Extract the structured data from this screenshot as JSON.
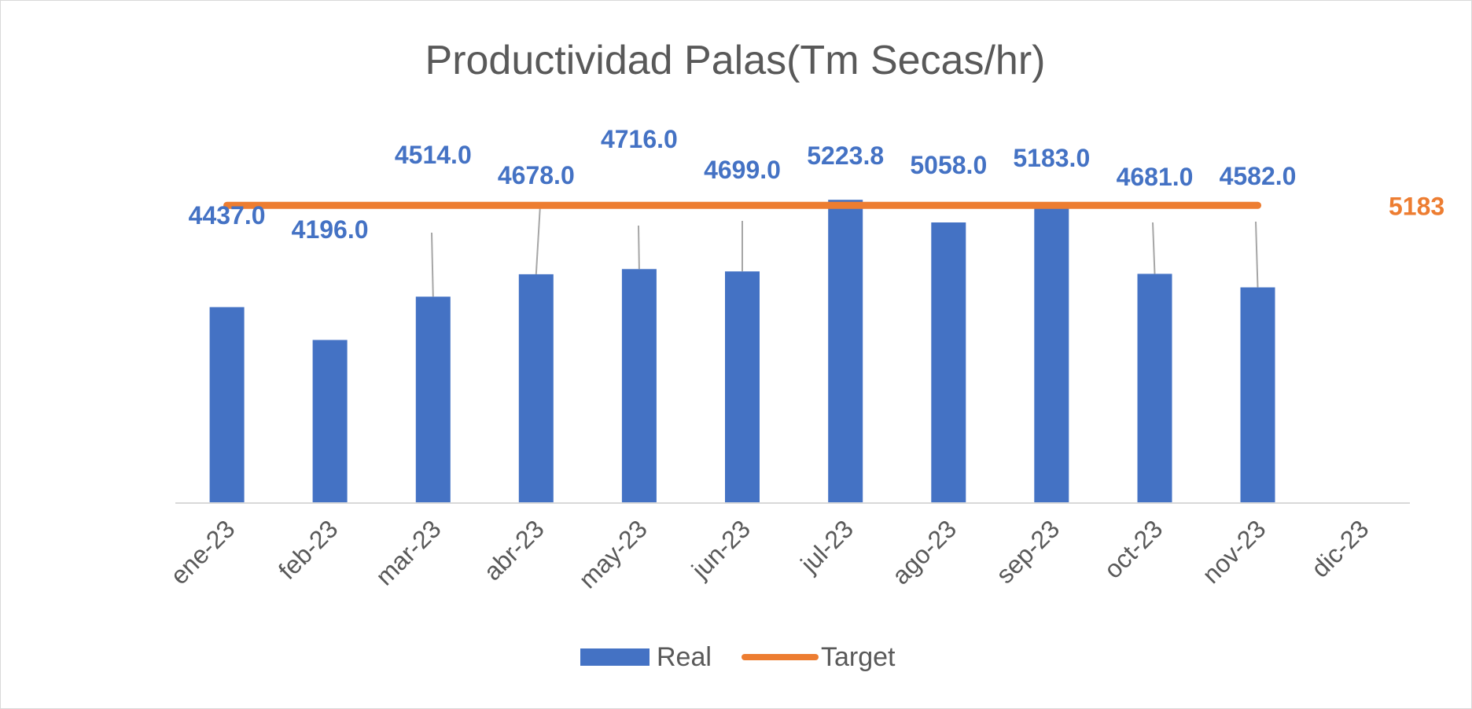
{
  "chart_data": {
    "type": "bar",
    "title": "Productividad Palas(Tm Secas/hr)",
    "categories": [
      "ene-23",
      "feb-23",
      "mar-23",
      "abr-23",
      "may-23",
      "jun-23",
      "jul-23",
      "ago-23",
      "sep-23",
      "oct-23",
      "nov-23",
      "dic-23"
    ],
    "series": [
      {
        "name": "Real",
        "kind": "bar",
        "color": "#4472C4",
        "values": [
          4437.0,
          4196.0,
          4514.0,
          4678.0,
          4716.0,
          4699.0,
          5223.8,
          5058.0,
          5183.0,
          4681.0,
          4582.0,
          null
        ],
        "labels": [
          "4437.0",
          "4196.0",
          "4514.0",
          "4678.0",
          "4716.0",
          "4699.0",
          "5223.8",
          "5058.0",
          "5183.0",
          "4681.0",
          "4582.0",
          ""
        ]
      },
      {
        "name": "Target",
        "kind": "line",
        "color": "#ED7D31",
        "values": [
          5183,
          5183,
          5183,
          5183,
          5183,
          5183,
          5183,
          5183,
          5183,
          5183,
          5183,
          5183
        ],
        "end_label": "5183"
      }
    ],
    "ylim": [
      0,
      5300
    ],
    "grid": false,
    "legend_position": "bottom"
  }
}
